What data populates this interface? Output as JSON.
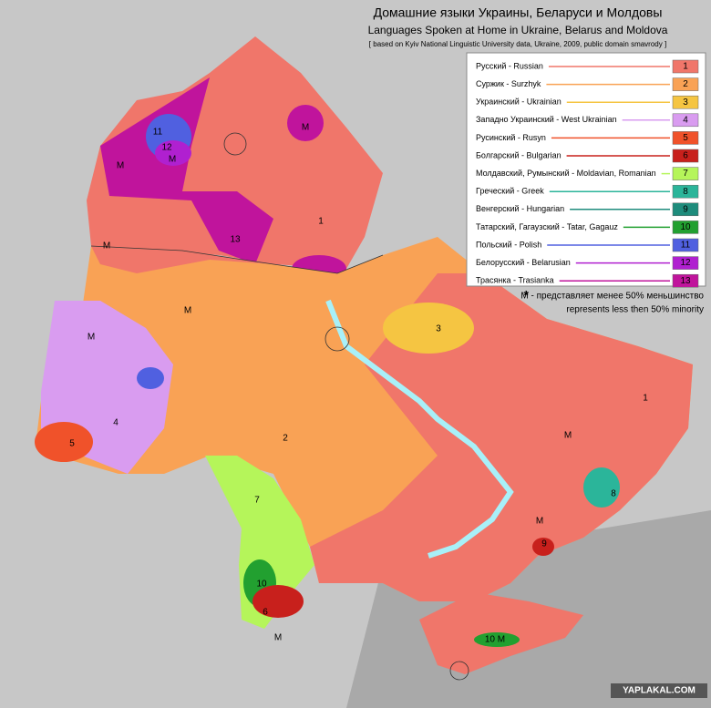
{
  "header": {
    "title": "Домашние языки Украины, Беларуси и Молдовы",
    "subtitle": "Languages Spoken at Home in Ukraine, Belarus and Moldova",
    "source": "[ based on Kyiv National Linguistic University data, Ukraine, 2009, public domain smavrody ]"
  },
  "legend": {
    "items": [
      {
        "label": "Русский - Russian",
        "number": 1,
        "color": "#f0766a"
      },
      {
        "label": "Суржик - Surzhyk",
        "number": 2,
        "color": "#f9a255"
      },
      {
        "label": "Украинский - Ukrainian",
        "number": 3,
        "color": "#f5c542"
      },
      {
        "label": "Западно Украинский - West Ukrainian",
        "number": 4,
        "color": "#d99cf0"
      },
      {
        "label": "Русинский - Rusyn",
        "number": 5,
        "color": "#f0522a"
      },
      {
        "label": "Болгарский - Bulgarian",
        "number": 6,
        "color": "#c8201c"
      },
      {
        "label": "Молдавский, Румынский - Moldavian, Romanian",
        "number": 7,
        "color": "#b5f55a"
      },
      {
        "label": "Греческий - Greek",
        "number": 8,
        "color": "#2bb59a"
      },
      {
        "label": "Венгерский - Hungarian",
        "number": 9,
        "color": "#1e8c7c"
      },
      {
        "label": "Татарский, Гагаузский - Tatar, Gagauz",
        "number": 10,
        "color": "#22a030"
      },
      {
        "label": "Польский - Polish",
        "number": 11,
        "color": "#5060e0"
      },
      {
        "label": "Белорусский - Belarusian",
        "number": 12,
        "color": "#b020d0"
      },
      {
        "label": "Трасянка - Trasianka",
        "number": 13,
        "color": "#c0149c"
      }
    ]
  },
  "note": {
    "marker": "*",
    "line1": "M - представляет менее 50% меньшинство",
    "line2": "represents less then 50% minority"
  },
  "map_labels": [
    "1",
    "1",
    "M",
    "M",
    "11",
    "12",
    "M",
    "13",
    "M",
    "M",
    "3",
    "M",
    "4",
    "2",
    "5",
    "7",
    "8",
    "M",
    "9",
    "10",
    "6",
    "10 M",
    "M",
    "M"
  ],
  "watermark": "YAPLAKAL.COM"
}
